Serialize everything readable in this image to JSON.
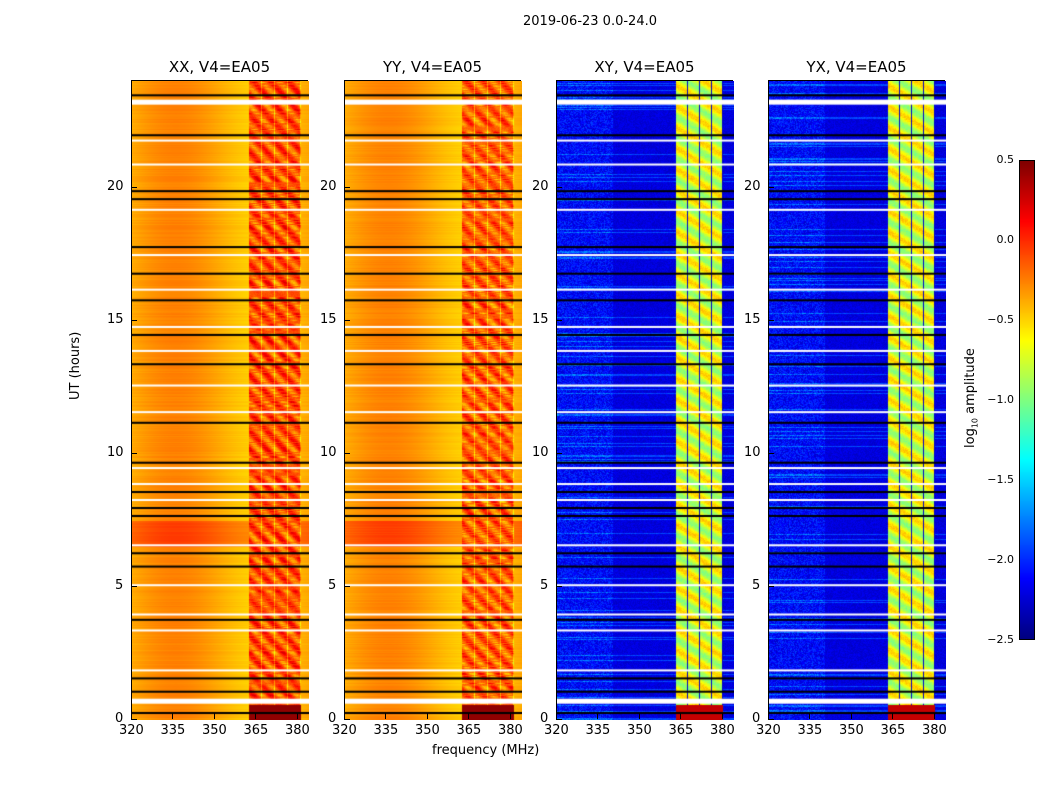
{
  "chart_data": {
    "type": "heatmap",
    "title": "2019-06-23 0.0-24.0",
    "xlabel": "frequency (MHz)",
    "ylabel": "UT (hours)",
    "xlim": [
      320,
      384
    ],
    "ylim": [
      0,
      24
    ],
    "xticks": [
      "320",
      "335",
      "350",
      "365",
      "380"
    ],
    "yticks": [
      "0",
      "5",
      "10",
      "15",
      "20"
    ],
    "panels": [
      {
        "title": "XX, V4=EA05",
        "type": "parallel",
        "background": -0.4,
        "band_mhz": [
          362,
          381
        ],
        "band_level": 0.05
      },
      {
        "title": "YY, V4=EA05",
        "type": "parallel",
        "background": -0.4,
        "band_mhz": [
          362,
          381
        ],
        "band_level": 0.0
      },
      {
        "title": "XY, V4=EA05",
        "type": "cross",
        "background": -2.3,
        "band_mhz": [
          363,
          380
        ],
        "band_level": -0.8
      },
      {
        "title": "YX, V4=EA05",
        "type": "cross",
        "background": -2.3,
        "band_mhz": [
          363,
          380
        ],
        "band_level": -0.8
      }
    ],
    "flagged_hours_white": [
      23.3,
      21.8,
      20.9,
      19.2,
      17.5,
      16.2,
      14.8,
      13.9,
      12.6,
      11.6,
      9.5,
      8.9,
      8.3,
      6.6,
      5.1,
      4.0,
      3.4,
      1.9,
      0.8
    ],
    "flagged_hours_black": [
      23.5,
      22.0,
      19.9,
      19.6,
      17.8,
      16.8,
      15.8,
      14.5,
      13.4,
      11.2,
      9.7,
      8.6,
      8.0,
      7.7,
      6.3,
      5.8,
      3.8,
      1.6,
      1.1,
      0.3
    ],
    "colorbar": {
      "label_prefix": "log",
      "label_sub": "10",
      "label_suffix": " amplitude",
      "colormap": "jet",
      "range": [
        -2.5,
        0.5
      ],
      "ticks": [
        "0.5",
        "0.0",
        "−0.5",
        "−1.0",
        "−1.5",
        "−2.0",
        "−2.5"
      ]
    }
  }
}
